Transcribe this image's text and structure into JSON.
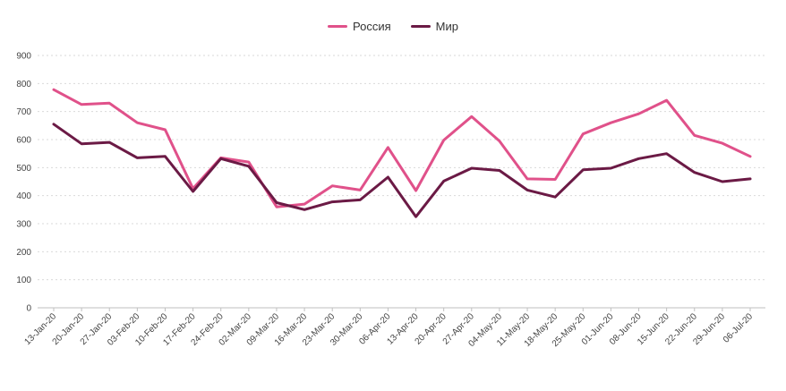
{
  "chart_data": {
    "type": "line",
    "title": "",
    "xlabel": "",
    "ylabel": "",
    "ylim": [
      0,
      900
    ],
    "yticks": [
      0,
      100,
      200,
      300,
      400,
      500,
      600,
      700,
      800,
      900
    ],
    "grid": "horizontal dotted",
    "legend_position": "top-center",
    "categories": [
      "13-Jan-20",
      "20-Jan-20",
      "27-Jan-20",
      "03-Feb-20",
      "10-Feb-20",
      "17-Feb-20",
      "24-Feb-20",
      "02-Mar-20",
      "09-Mar-20",
      "16-Mar-20",
      "23-Mar-20",
      "30-Mar-20",
      "06-Apr-20",
      "13-Apr-20",
      "20-Apr-20",
      "27-Apr-20",
      "04-May-20",
      "11-May-20",
      "18-May-20",
      "25-May-20",
      "01-Jun-20",
      "08-Jun-20",
      "15-Jun-20",
      "22-Jun-20",
      "29-Jun-20",
      "06-Jul-20"
    ],
    "series": [
      {
        "name": "Россия",
        "color": "#e0518a",
        "values": [
          778,
          725,
          730,
          660,
          635,
          425,
          535,
          520,
          360,
          370,
          435,
          420,
          572,
          418,
          598,
          682,
          595,
          460,
          458,
          620,
          660,
          692,
          740,
          615,
          587,
          540
        ]
      },
      {
        "name": "Мир",
        "color": "#6b1a45",
        "values": [
          655,
          585,
          590,
          535,
          540,
          415,
          532,
          505,
          375,
          350,
          378,
          385,
          466,
          325,
          452,
          498,
          490,
          420,
          395,
          492,
          498,
          532,
          550,
          483,
          450,
          460
        ]
      }
    ]
  }
}
